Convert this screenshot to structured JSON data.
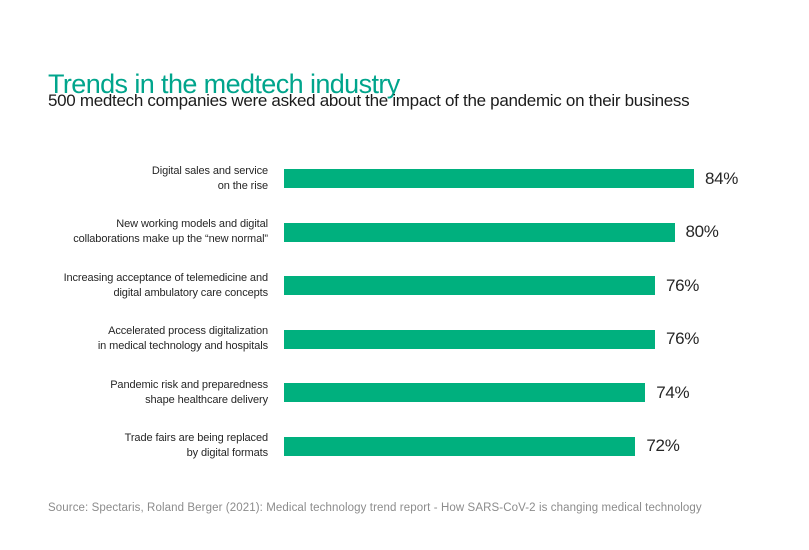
{
  "header": {
    "title": "Trends in the medtech industry",
    "subtitle": "500 medtech companies were asked about the impact of the pandemic on their business"
  },
  "chart_data": {
    "type": "bar",
    "orientation": "horizontal",
    "title": "Trends in the medtech industry",
    "subtitle": "500 medtech companies were asked about the impact of the pandemic on their business",
    "categories": [
      "Digital sales and service\non the rise",
      "New working models and digital\ncollaborations make up the “new normal”",
      "Increasing acceptance of telemedicine and\ndigital ambulatory care concepts",
      "Accelerated process digitalization\nin medical technology and hospitals",
      "Pandemic risk and preparedness\nshape healthcare delivery",
      "Trade fairs are being replaced\nby digital formats"
    ],
    "values": [
      84,
      80,
      76,
      76,
      74,
      72
    ],
    "value_labels": [
      "84%",
      "80%",
      "76%",
      "76%",
      "74%",
      "72%"
    ],
    "unit": "%",
    "xlabel": "",
    "ylabel": "",
    "xlim": [
      0,
      84
    ],
    "grid": false,
    "legend": "none",
    "axis_ticks": "none",
    "data_labels_position": "right-of-bar"
  },
  "colors": {
    "title_teal": "#00a58c",
    "bar_green": "#00b07e",
    "text_dark": "#262626",
    "source_gray": "#8c8c8c",
    "background": "#ffffff"
  },
  "footer": {
    "source": "Source: Spectaris, Roland Berger (2021): Medical technology trend report - How SARS-CoV-2 is changing medical technology"
  }
}
